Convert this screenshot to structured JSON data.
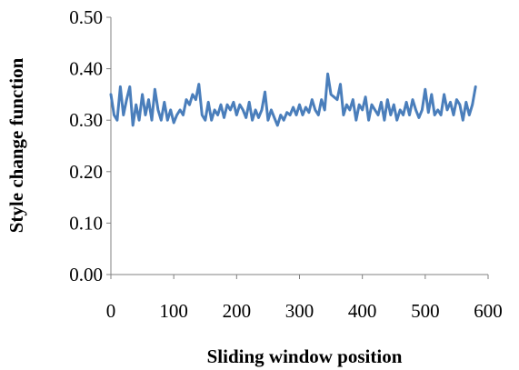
{
  "chart_data": {
    "type": "line",
    "title": "",
    "xlabel": "Sliding window position",
    "ylabel": "Style change function",
    "xlim": [
      0,
      600
    ],
    "ylim": [
      0,
      0.5
    ],
    "x_ticks": [
      "0",
      "100",
      "200",
      "300",
      "400",
      "500",
      "600"
    ],
    "y_ticks": [
      "0.00",
      "0.10",
      "0.20",
      "0.30",
      "0.40",
      "0.50"
    ],
    "grid": false,
    "legend": "none",
    "line_color": "#4a7ebb",
    "series": [
      {
        "x": [
          0,
          5,
          10,
          15,
          20,
          25,
          30,
          35,
          40,
          45,
          50,
          55,
          60,
          65,
          70,
          75,
          80,
          85,
          90,
          95,
          100,
          105,
          110,
          115,
          120,
          125,
          130,
          135,
          140,
          145,
          150,
          155,
          160,
          165,
          170,
          175,
          180,
          185,
          190,
          195,
          200,
          205,
          210,
          215,
          220,
          225,
          230,
          235,
          240,
          245,
          250,
          255,
          260,
          265,
          270,
          275,
          280,
          285,
          290,
          295,
          300,
          305,
          310,
          315,
          320,
          325,
          330,
          335,
          340,
          345,
          350,
          355,
          360,
          365,
          370,
          375,
          380,
          385,
          390,
          395,
          400,
          405,
          410,
          415,
          420,
          425,
          430,
          435,
          440,
          445,
          450,
          455,
          460,
          465,
          470,
          475,
          480,
          485,
          490,
          495,
          500,
          505,
          510,
          515,
          520,
          525,
          530,
          535,
          540,
          545,
          550,
          555,
          560,
          565,
          570,
          575,
          580
        ],
        "y": [
          0.35,
          0.31,
          0.3,
          0.365,
          0.31,
          0.34,
          0.365,
          0.29,
          0.33,
          0.3,
          0.35,
          0.31,
          0.34,
          0.3,
          0.36,
          0.32,
          0.3,
          0.335,
          0.3,
          0.32,
          0.295,
          0.31,
          0.32,
          0.31,
          0.34,
          0.33,
          0.35,
          0.34,
          0.37,
          0.31,
          0.3,
          0.335,
          0.3,
          0.32,
          0.31,
          0.33,
          0.305,
          0.33,
          0.32,
          0.335,
          0.31,
          0.33,
          0.32,
          0.305,
          0.335,
          0.3,
          0.32,
          0.305,
          0.32,
          0.355,
          0.3,
          0.32,
          0.305,
          0.29,
          0.31,
          0.3,
          0.315,
          0.31,
          0.325,
          0.31,
          0.33,
          0.31,
          0.325,
          0.315,
          0.34,
          0.32,
          0.31,
          0.34,
          0.32,
          0.39,
          0.35,
          0.345,
          0.34,
          0.37,
          0.31,
          0.33,
          0.32,
          0.34,
          0.3,
          0.33,
          0.32,
          0.345,
          0.3,
          0.33,
          0.32,
          0.31,
          0.335,
          0.3,
          0.34,
          0.31,
          0.33,
          0.3,
          0.32,
          0.31,
          0.335,
          0.31,
          0.34,
          0.32,
          0.305,
          0.32,
          0.36,
          0.315,
          0.35,
          0.31,
          0.32,
          0.31,
          0.35,
          0.32,
          0.335,
          0.31,
          0.34,
          0.33,
          0.3,
          0.335,
          0.31,
          0.33,
          0.365
        ]
      }
    ]
  }
}
